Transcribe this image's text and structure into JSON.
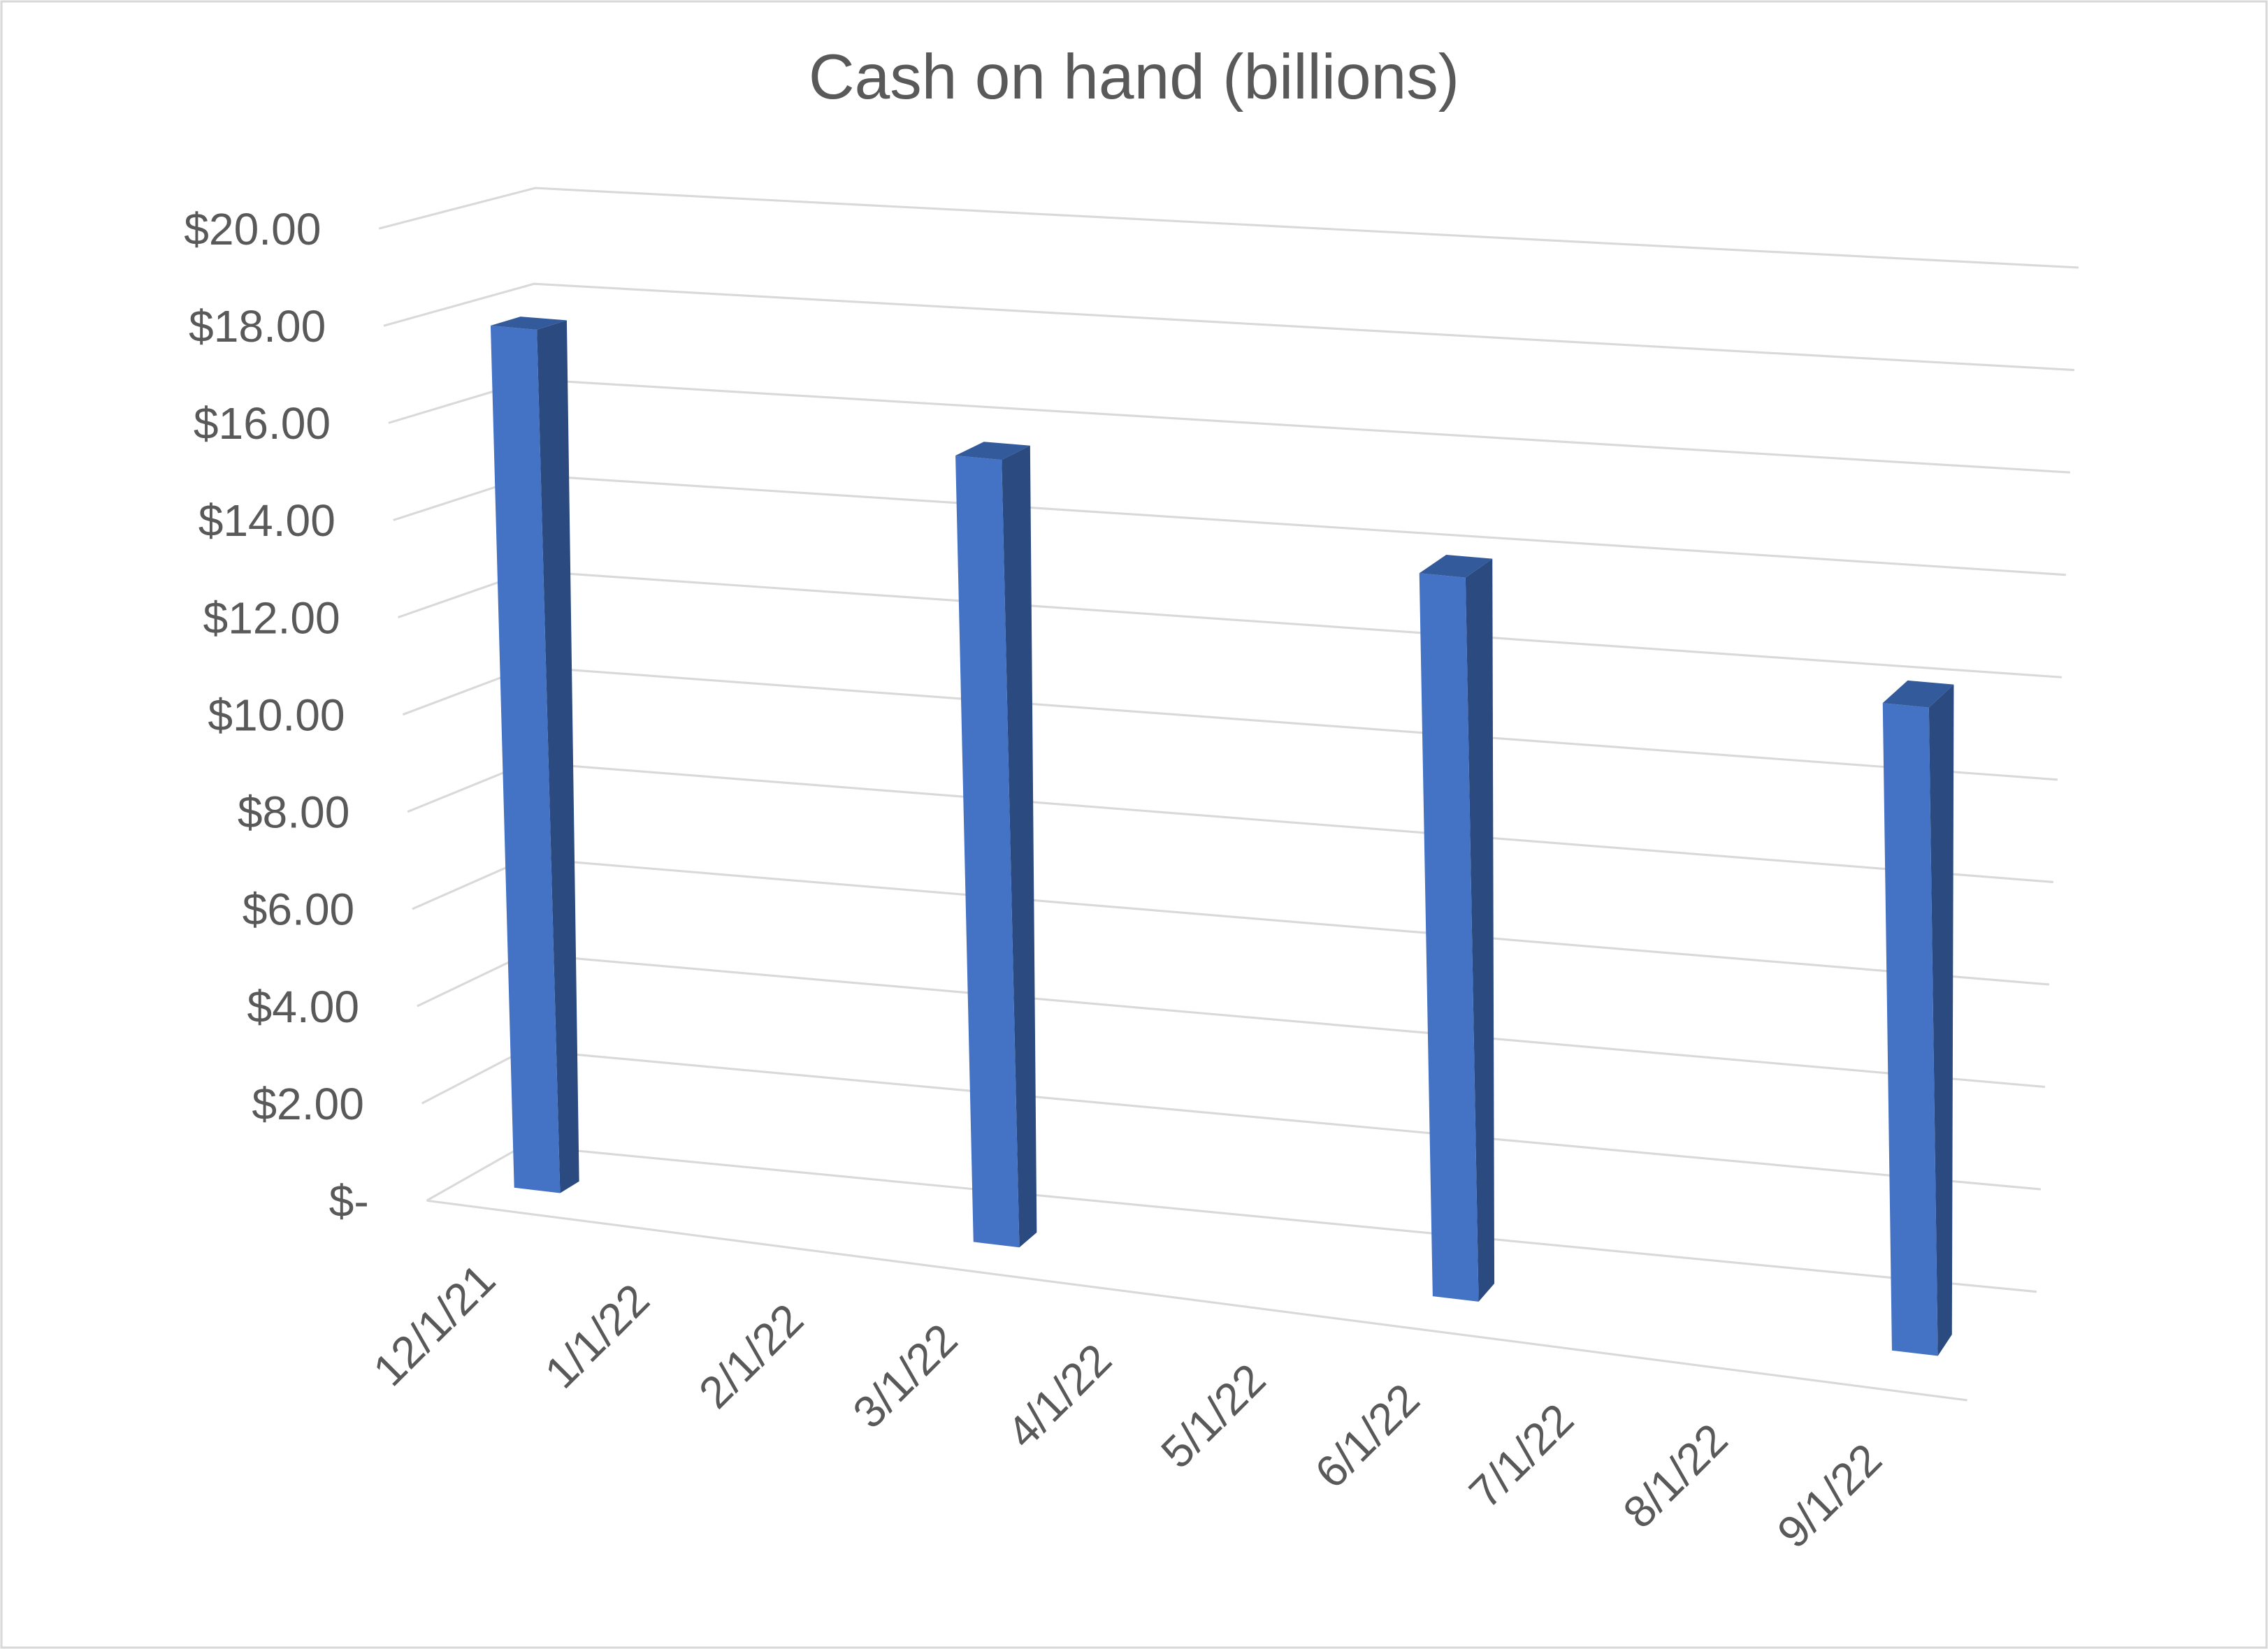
{
  "chart_data": {
    "type": "bar",
    "style": "3d-column",
    "title": "Cash on hand (billions)",
    "xlabel": "",
    "ylabel": "",
    "categories": [
      "12/1/21",
      "1/1/22",
      "2/1/22",
      "3/1/22",
      "4/1/22",
      "5/1/22",
      "6/1/22",
      "7/1/22",
      "8/1/22",
      "9/1/22"
    ],
    "values": [
      17.8,
      null,
      null,
      16.0,
      null,
      null,
      14.5,
      null,
      null,
      12.8
    ],
    "ylim": [
      0,
      20
    ],
    "yticks": [
      0,
      2,
      4,
      6,
      8,
      10,
      12,
      14,
      16,
      18,
      20
    ],
    "ytick_labels": [
      "$-",
      "$2.00",
      "$4.00",
      "$6.00",
      "$8.00",
      "$10.00",
      "$12.00",
      "$14.00",
      "$16.00",
      "$18.00",
      "$20.00"
    ],
    "grid": true,
    "legend": "none",
    "colors": {
      "front": "#4472C4",
      "side": "#2A4A80",
      "top": "#335A9B",
      "grid": "#D9D9D9",
      "text": "#595959",
      "border": "#D9D9D9"
    }
  }
}
